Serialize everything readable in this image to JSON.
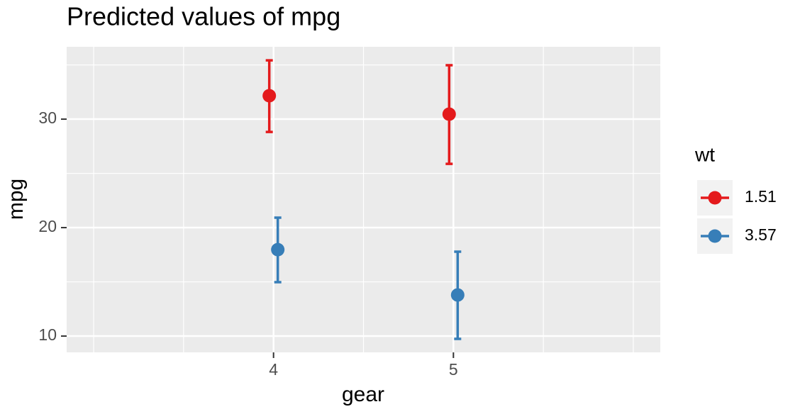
{
  "chart_data": {
    "type": "errorbar-point",
    "title": "Predicted values of mpg",
    "x_label": "gear",
    "y_label": "mpg",
    "legend_title": "wt",
    "x": [
      4,
      5
    ],
    "series": [
      {
        "name": "1.51",
        "color": "#e41a1c",
        "values": [
          32.16,
          30.46
        ],
        "lower": [
          28.82,
          25.88
        ],
        "upper": [
          35.42,
          34.97
        ]
      },
      {
        "name": "3.57",
        "color": "#377eb8",
        "values": [
          17.97,
          13.79
        ],
        "lower": [
          14.97,
          9.74
        ],
        "upper": [
          20.92,
          17.78
        ]
      }
    ],
    "xlim": [
      2.85,
      6.15
    ],
    "xticks": [
      4,
      5
    ],
    "x_minor_grid": [
      3,
      3.5,
      4.5,
      5.5,
      6
    ],
    "ylim": [
      8.5,
      36.67
    ],
    "yticks": [
      10,
      20,
      30
    ],
    "y_minor_grid": [
      15,
      25,
      35
    ],
    "grid": true,
    "legend": "right"
  }
}
